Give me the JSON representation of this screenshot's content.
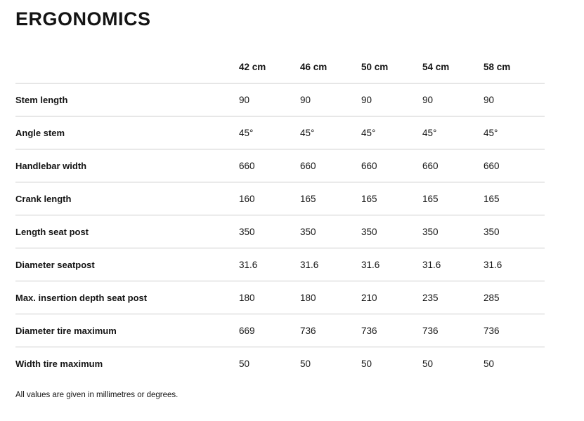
{
  "title": "ERGONOMICS",
  "table": {
    "columns": [
      "42 cm",
      "46 cm",
      "50 cm",
      "54 cm",
      "58 cm"
    ],
    "rows": [
      {
        "label": "Stem length",
        "values": [
          "90",
          "90",
          "90",
          "90",
          "90"
        ]
      },
      {
        "label": "Angle stem",
        "values": [
          "45°",
          "45°",
          "45°",
          "45°",
          "45°"
        ]
      },
      {
        "label": "Handlebar width",
        "values": [
          "660",
          "660",
          "660",
          "660",
          "660"
        ]
      },
      {
        "label": "Crank length",
        "values": [
          "160",
          "165",
          "165",
          "165",
          "165"
        ]
      },
      {
        "label": "Length seat post",
        "values": [
          "350",
          "350",
          "350",
          "350",
          "350"
        ]
      },
      {
        "label": "Diameter seatpost",
        "values": [
          "31.6",
          "31.6",
          "31.6",
          "31.6",
          "31.6"
        ]
      },
      {
        "label": "Max. insertion depth seat post",
        "values": [
          "180",
          "180",
          "210",
          "235",
          "285"
        ]
      },
      {
        "label": "Diameter tire maximum",
        "values": [
          "669",
          "736",
          "736",
          "736",
          "736"
        ]
      },
      {
        "label": "Width tire maximum",
        "values": [
          "50",
          "50",
          "50",
          "50",
          "50"
        ]
      }
    ]
  },
  "footnote": "All values are given in millimetres or degrees.",
  "colors": {
    "text": "#141414",
    "divider": "#cccccc"
  }
}
